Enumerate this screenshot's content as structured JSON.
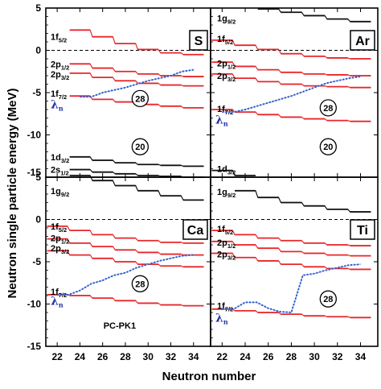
{
  "chart_data": {
    "type": "line",
    "ylabel": "Neutron single particle energy (MeV)",
    "xlabel": "Neutron number",
    "x_ticks": [
      22,
      24,
      26,
      28,
      30,
      32,
      34
    ],
    "top_y_ticks": [
      "5",
      "0",
      "-5",
      "-10",
      "-15"
    ],
    "bottom_y_ticks": [
      "5",
      "0",
      "-5",
      "-10",
      "-15"
    ],
    "top_ylim": [
      -15,
      5
    ],
    "bottom_ylim": [
      -15,
      5
    ],
    "xlim": [
      21,
      35.5
    ],
    "fermi_level_line": 0,
    "model_label": "PC-PK1",
    "colors": {
      "orbital_red": "#e8262a",
      "orbital_black": "#111111",
      "lambda_blue": "#2f55c8",
      "lambda_line": "#7aa7e8"
    },
    "panels": [
      {
        "nucleus": "S",
        "nucleus_box_pos": "top-right",
        "magic": [
          "28",
          "20"
        ],
        "magic_y": [
          -5.7,
          -11.4
        ],
        "magic_x": [
          29.3,
          29.3
        ],
        "lambda_label": "λ",
        "lambda_sub": "n",
        "lambda_label_y": -6.4,
        "levels": [
          {
            "label": "1f",
            "sub": "5/2",
            "color": "red",
            "label_y": 1.6,
            "x": [
              24,
              26,
              28,
              30,
              32,
              34
            ],
            "y": [
              2.4,
              1.6,
              0.8,
              0.1,
              -0.3,
              -0.5
            ]
          },
          {
            "label": "2p",
            "sub": "1/2",
            "color": "red",
            "label_y": -1.6,
            "x": [
              24,
              26,
              28,
              30,
              32,
              34
            ],
            "y": [
              -1.6,
              -2.1,
              -2.5,
              -2.8,
              -3.0,
              -3.1
            ]
          },
          {
            "label": "2p",
            "sub": "3/2",
            "color": "red",
            "label_y": -2.8,
            "x": [
              24,
              26,
              28,
              30,
              32,
              34
            ],
            "y": [
              -2.7,
              -3.2,
              -3.6,
              -3.9,
              -4.1,
              -4.2
            ]
          },
          {
            "label": "1f",
            "sub": "7/2",
            "color": "red",
            "label_y": -5.1,
            "x": [
              24,
              26,
              28,
              30,
              32,
              34
            ],
            "y": [
              -5.4,
              -5.8,
              -6.1,
              -6.4,
              -6.6,
              -6.8
            ]
          },
          {
            "label": "1d",
            "sub": "3/2",
            "color": "black",
            "label_y": -12.6,
            "x": [
              24,
              26,
              28,
              30,
              32,
              34
            ],
            "y": [
              -12.6,
              -13.0,
              -13.3,
              -13.5,
              -13.6,
              -13.7
            ]
          },
          {
            "label": "2s",
            "sub": "1/2",
            "color": "black",
            "label_y": -14.1,
            "x": [
              24,
              26,
              28,
              30,
              32,
              34
            ],
            "y": [
              -14.1,
              -14.4,
              -14.6,
              -14.8,
              -14.9,
              -15.0
            ]
          }
        ],
        "lambda": {
          "x": [
            24,
            25,
            26,
            27,
            28,
            29,
            30,
            31,
            32,
            33,
            34
          ],
          "y": [
            -5.5,
            -5.5,
            -5.0,
            -4.7,
            -4.4,
            -4.0,
            -3.6,
            -3.3,
            -3.0,
            -2.5,
            -2.3
          ]
        }
      },
      {
        "nucleus": "Ar",
        "nucleus_box_pos": "top-right",
        "magic": [
          "28",
          "20"
        ],
        "magic_y": [
          -6.8,
          -11.4
        ],
        "magic_x": [
          31.2,
          31.2
        ],
        "lambda_label": "λ",
        "lambda_sub": "n",
        "lambda_label_y": -8.2,
        "levels": [
          {
            "label": "1g",
            "sub": "9/2",
            "color": "black",
            "label_y": 3.8,
            "x": [
              26,
              28,
              30,
              32,
              34
            ],
            "y": [
              4.9,
              4.5,
              4.1,
              3.7,
              3.4
            ]
          },
          {
            "label": "1f",
            "sub": "5/2",
            "color": "red",
            "label_y": 1.4,
            "x": [
              22,
              24,
              26,
              28,
              30,
              32,
              34
            ],
            "y": [
              1.2,
              0.6,
              0.1,
              -0.4,
              -0.7,
              -0.9,
              -1.0
            ]
          },
          {
            "label": "2p",
            "sub": "1/2",
            "color": "red",
            "label_y": -1.5,
            "x": [
              22,
              24,
              26,
              28,
              30,
              32,
              34
            ],
            "y": [
              -1.4,
              -1.9,
              -2.3,
              -2.6,
              -2.8,
              -2.9,
              -3.0
            ]
          },
          {
            "label": "2p",
            "sub": "3/2",
            "color": "red",
            "label_y": -3.0,
            "x": [
              22,
              24,
              26,
              28,
              30,
              32,
              34
            ],
            "y": [
              -2.8,
              -3.3,
              -3.7,
              -4.0,
              -4.2,
              -4.3,
              -4.4
            ]
          },
          {
            "label": "1f",
            "sub": "7/2",
            "color": "red",
            "label_y": -6.9,
            "x": [
              22,
              24,
              26,
              28,
              30,
              32,
              34
            ],
            "y": [
              -7.0,
              -7.3,
              -7.6,
              -7.9,
              -8.1,
              -8.3,
              -8.4
            ]
          },
          {
            "label": "1d",
            "sub": "3/2",
            "color": "black",
            "label_y": -14.0,
            "x": [
              22,
              24
            ],
            "y": [
              -14.2,
              -14.8
            ]
          }
        ],
        "lambda": {
          "x": [
            22,
            23,
            24,
            25,
            26,
            27,
            28,
            29,
            30,
            31,
            32,
            33,
            34
          ],
          "y": [
            -7.3,
            -7.3,
            -7.0,
            -6.6,
            -6.2,
            -5.8,
            -5.4,
            -4.9,
            -4.4,
            -3.9,
            -3.6,
            -3.3,
            -3.1
          ]
        }
      },
      {
        "nucleus": "Ca",
        "nucleus_box_pos": "bottom-right",
        "magic": [
          "28"
        ],
        "magic_y": [
          -7.6
        ],
        "magic_x": [
          29.3
        ],
        "lambda_label": "λ",
        "lambda_sub": "n",
        "lambda_label_y": -9.6,
        "levels": [
          {
            "label": "1g",
            "sub": "9/2",
            "color": "black",
            "label_y": 3.4,
            "x": [
              24,
              26,
              28,
              30,
              32,
              34
            ],
            "y": [
              5.2,
              4.6,
              4.0,
              3.4,
              2.8,
              2.3
            ]
          },
          {
            "label": "1f",
            "sub": "5/2",
            "color": "red",
            "label_y": -0.8,
            "x": [
              22,
              24,
              26,
              28,
              30,
              32,
              34
            ],
            "y": [
              -0.8,
              -1.3,
              -1.8,
              -2.2,
              -2.5,
              -2.7,
              -2.8
            ]
          },
          {
            "label": "2p",
            "sub": "1/2",
            "color": "red",
            "label_y": -2.2,
            "x": [
              22,
              24,
              26,
              28,
              30,
              32,
              34
            ],
            "y": [
              -2.3,
              -2.8,
              -3.2,
              -3.6,
              -3.9,
              -4.1,
              -4.2
            ]
          },
          {
            "label": "2p",
            "sub": "3/2",
            "color": "red",
            "label_y": -3.4,
            "x": [
              22,
              24,
              26,
              28,
              30,
              32,
              34
            ],
            "y": [
              -3.7,
              -4.2,
              -4.6,
              -5.0,
              -5.3,
              -5.5,
              -5.6
            ]
          },
          {
            "label": "1f",
            "sub": "7/2",
            "color": "red",
            "label_y": -8.5,
            "x": [
              22,
              24,
              26,
              28,
              30,
              32,
              34
            ],
            "y": [
              -8.9,
              -9.0,
              -9.3,
              -9.6,
              -9.9,
              -10.1,
              -10.2
            ]
          }
        ],
        "lambda": {
          "x": [
            22,
            23,
            24,
            25,
            26,
            27,
            28,
            29,
            30,
            31,
            32,
            33,
            34
          ],
          "y": [
            -8.9,
            -8.9,
            -8.4,
            -7.6,
            -7.2,
            -6.6,
            -6.3,
            -5.7,
            -5.3,
            -4.9,
            -4.6,
            -4.3,
            -4.2
          ]
        }
      },
      {
        "nucleus": "Ti",
        "nucleus_box_pos": "bottom-right",
        "magic": [
          "28"
        ],
        "magic_y": [
          -9.4
        ],
        "magic_x": [
          31.2
        ],
        "lambda_label": "λ",
        "lambda_sub": "n",
        "lambda_label_y": -11.6,
        "levels": [
          {
            "label": "1g",
            "sub": "9/2",
            "color": "black",
            "label_y": 3.3,
            "x": [
              24,
              26,
              28,
              30,
              32,
              34
            ],
            "y": [
              3.4,
              2.6,
              2.0,
              1.6,
              1.2,
              0.9
            ]
          },
          {
            "label": "1f",
            "sub": "5/2",
            "color": "red",
            "label_y": -1.1,
            "x": [
              22,
              24,
              26,
              28,
              30,
              32,
              34
            ],
            "y": [
              -1.3,
              -1.8,
              -2.2,
              -2.5,
              -2.8,
              -3.0,
              -3.1
            ]
          },
          {
            "label": "2p",
            "sub": "1/2",
            "color": "red",
            "label_y": -2.7,
            "x": [
              22,
              24,
              26,
              28,
              30,
              32,
              34
            ],
            "y": [
              -2.6,
              -3.0,
              -3.4,
              -3.8,
              -4.0,
              -4.2,
              -4.3
            ]
          },
          {
            "label": "2p",
            "sub": "3/2",
            "color": "red",
            "label_y": -4.1,
            "x": [
              22,
              24,
              26,
              28,
              30,
              32,
              34
            ],
            "y": [
              -4.0,
              -4.5,
              -4.9,
              -5.3,
              -5.6,
              -5.8,
              -5.9
            ]
          },
          {
            "label": "1f",
            "sub": "7/2",
            "color": "red",
            "label_y": -10.2,
            "x": [
              22,
              24,
              26,
              28,
              30,
              32,
              34
            ],
            "y": [
              -10.6,
              -10.8,
              -11.0,
              -11.2,
              -11.4,
              -11.5,
              -11.6
            ]
          }
        ],
        "lambda": {
          "x": [
            22,
            23,
            24,
            25,
            26,
            27,
            28,
            29,
            30,
            31,
            32,
            33,
            34
          ],
          "y": [
            -10.6,
            -10.6,
            -9.8,
            -9.8,
            -10.5,
            -10.9,
            -11.0,
            -6.6,
            -6.4,
            -6.0,
            -5.7,
            -5.4,
            -5.3
          ]
        }
      }
    ]
  }
}
